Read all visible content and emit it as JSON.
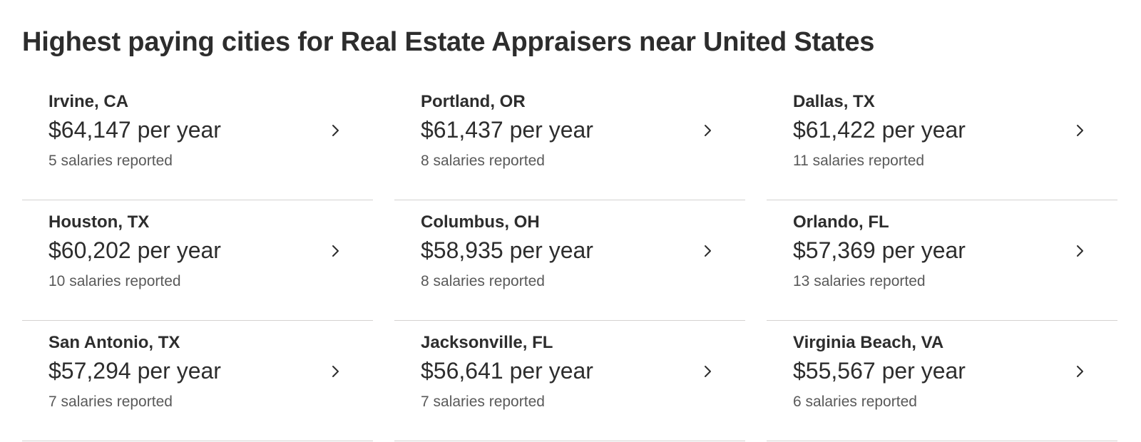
{
  "page": {
    "title": "Highest paying cities for Real Estate Appraisers near United States"
  },
  "colors": {
    "text_primary": "#2d2d2d",
    "text_secondary": "#595959",
    "divider": "#d4d2d0",
    "background": "#ffffff"
  },
  "cities": [
    {
      "name": "Irvine, CA",
      "salary": "$64,147 per year",
      "reported": "5 salaries reported",
      "icon": "chevron-right-icon"
    },
    {
      "name": "Portland, OR",
      "salary": "$61,437 per year",
      "reported": "8 salaries reported",
      "icon": "chevron-right-icon"
    },
    {
      "name": "Dallas, TX",
      "salary": "$61,422 per year",
      "reported": "11 salaries reported",
      "icon": "chevron-right-icon"
    },
    {
      "name": "Houston, TX",
      "salary": "$60,202 per year",
      "reported": "10 salaries reported",
      "icon": "chevron-right-icon"
    },
    {
      "name": "Columbus, OH",
      "salary": "$58,935 per year",
      "reported": "8 salaries reported",
      "icon": "chevron-right-icon"
    },
    {
      "name": "Orlando, FL",
      "salary": "$57,369 per year",
      "reported": "13 salaries reported",
      "icon": "chevron-right-icon"
    },
    {
      "name": "San Antonio, TX",
      "salary": "$57,294 per year",
      "reported": "7 salaries reported",
      "icon": "chevron-right-icon"
    },
    {
      "name": "Jacksonville, FL",
      "salary": "$56,641 per year",
      "reported": "7 salaries reported",
      "icon": "chevron-right-icon"
    },
    {
      "name": "Virginia Beach, VA",
      "salary": "$55,567 per year",
      "reported": "6 salaries reported",
      "icon": "chevron-right-icon"
    }
  ]
}
